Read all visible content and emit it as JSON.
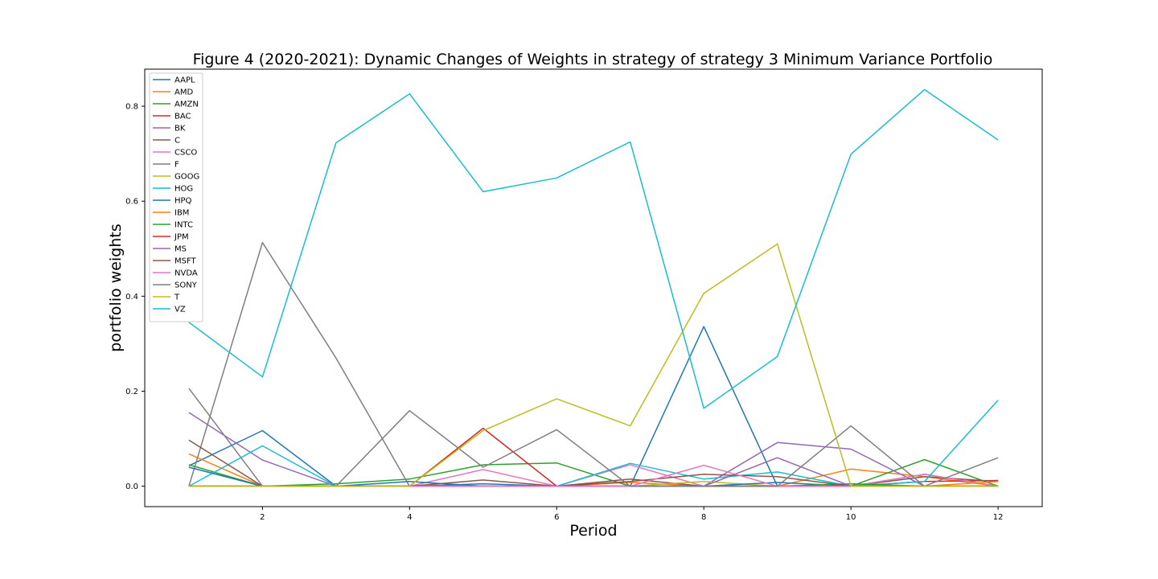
{
  "chart_data": {
    "type": "line",
    "title": "Figure 4 (2020-2021): Dynamic Changes of Weights in strategy of strategy 3 Minimum Variance Portfolio",
    "xlabel": "Period",
    "ylabel": "portfolio weights",
    "x": [
      1,
      2,
      3,
      4,
      5,
      6,
      7,
      8,
      9,
      10,
      11,
      12
    ],
    "xlim": [
      0.4,
      12.6
    ],
    "ylim": [
      -0.043,
      0.878
    ],
    "xticks": [
      2,
      4,
      6,
      8,
      10,
      12
    ],
    "yticks": [
      0.0,
      0.2,
      0.4,
      0.6,
      0.8
    ],
    "ytick_labels": [
      "0.0",
      "0.2",
      "0.4",
      "0.6",
      "0.8"
    ],
    "grid": false,
    "legend_position": "upper-left",
    "series": [
      {
        "name": "AAPL",
        "color": "#1f77b4",
        "values": [
          0.043,
          0.117,
          0.0,
          0.0,
          0.005,
          0.0,
          0.0,
          0.336,
          0.0,
          0.0,
          0.025,
          0.0
        ]
      },
      {
        "name": "AMD",
        "color": "#ff7f0e",
        "values": [
          0.068,
          0.0,
          0.0,
          0.0,
          0.0,
          0.0,
          0.008,
          0.0,
          0.0,
          0.036,
          0.02,
          0.0
        ]
      },
      {
        "name": "AMZN",
        "color": "#2ca02c",
        "values": [
          0.045,
          0.0,
          0.005,
          0.015,
          0.045,
          0.049,
          0.0,
          0.0,
          0.0,
          0.0,
          0.056,
          0.0
        ]
      },
      {
        "name": "BAC",
        "color": "#d62728",
        "values": [
          0.0,
          0.0,
          0.0,
          0.0,
          0.0,
          0.0,
          0.0,
          0.0,
          0.0,
          0.0,
          0.01,
          0.012
        ]
      },
      {
        "name": "BK",
        "color": "#9467bd",
        "values": [
          0.155,
          0.055,
          0.0,
          0.0,
          0.0,
          0.0,
          0.0,
          0.0,
          0.092,
          0.078,
          0.0,
          0.0
        ]
      },
      {
        "name": "C",
        "color": "#8c564b",
        "values": [
          0.0,
          0.0,
          0.0,
          0.0,
          0.0,
          0.0,
          0.015,
          0.0,
          0.0,
          0.0,
          0.02,
          0.01
        ]
      },
      {
        "name": "CSCO",
        "color": "#e377c2",
        "values": [
          0.0,
          0.0,
          0.0,
          0.0,
          0.035,
          0.0,
          0.045,
          0.0,
          0.0,
          0.0,
          0.025,
          0.0
        ]
      },
      {
        "name": "F",
        "color": "#7f7f7f",
        "values": [
          0.0,
          0.513,
          0.27,
          0.0,
          0.0,
          0.0,
          0.0,
          0.0,
          0.0,
          0.0,
          0.0,
          0.0
        ]
      },
      {
        "name": "GOOG",
        "color": "#bcbd22",
        "values": [
          0.0,
          0.0,
          0.0,
          0.0,
          0.0,
          0.0,
          0.0,
          0.01,
          0.0,
          0.0,
          0.0,
          0.0
        ]
      },
      {
        "name": "HOG",
        "color": "#17becf",
        "values": [
          0.0,
          0.085,
          0.0,
          0.0,
          0.0,
          0.0,
          0.048,
          0.015,
          0.03,
          0.0,
          0.01,
          0.181
        ]
      },
      {
        "name": "HPQ",
        "color": "#1f77b4",
        "values": [
          0.04,
          0.0,
          0.0,
          0.01,
          0.0,
          0.0,
          0.0,
          0.0,
          0.008,
          0.0,
          0.0,
          0.0
        ]
      },
      {
        "name": "IBM",
        "color": "#ff7f0e",
        "values": [
          0.0,
          0.0,
          0.0,
          0.0,
          0.0,
          0.0,
          0.0,
          0.0,
          0.0,
          0.0,
          0.0,
          0.01
        ]
      },
      {
        "name": "INTC",
        "color": "#2ca02c",
        "values": [
          0.0,
          0.0,
          0.0,
          0.0,
          0.0,
          0.0,
          0.0,
          0.0,
          0.0,
          0.005,
          0.0,
          0.0
        ]
      },
      {
        "name": "JPM",
        "color": "#d62728",
        "values": [
          0.0,
          0.0,
          0.0,
          0.0,
          0.122,
          0.0,
          0.0,
          0.0,
          0.0,
          0.0,
          0.0,
          0.0
        ]
      },
      {
        "name": "MS",
        "color": "#9467bd",
        "values": [
          0.0,
          0.0,
          0.0,
          0.0,
          0.0,
          0.0,
          0.0,
          0.0,
          0.06,
          0.0,
          0.0,
          0.0
        ]
      },
      {
        "name": "MSFT",
        "color": "#8c564b",
        "values": [
          0.097,
          0.0,
          0.0,
          0.0,
          0.013,
          0.0,
          0.01,
          0.025,
          0.02,
          0.0,
          0.0,
          0.0
        ]
      },
      {
        "name": "NVDA",
        "color": "#e377c2",
        "values": [
          0.0,
          0.0,
          0.0,
          0.0,
          0.0,
          0.0,
          0.0,
          0.044,
          0.0,
          0.0,
          0.0,
          0.0
        ]
      },
      {
        "name": "SONY",
        "color": "#7f7f7f",
        "values": [
          0.206,
          0.0,
          0.0,
          0.159,
          0.04,
          0.119,
          0.0,
          0.0,
          0.0,
          0.127,
          0.0,
          0.06
        ]
      },
      {
        "name": "T",
        "color": "#bcbd22",
        "values": [
          0.0,
          0.0,
          0.0,
          0.0,
          0.117,
          0.184,
          0.127,
          0.406,
          0.51,
          0.0,
          0.0,
          0.0
        ]
      },
      {
        "name": "VZ",
        "color": "#17becf",
        "values": [
          0.345,
          0.23,
          0.723,
          0.826,
          0.62,
          0.649,
          0.725,
          0.164,
          0.273,
          0.699,
          0.835,
          0.729
        ]
      }
    ]
  }
}
